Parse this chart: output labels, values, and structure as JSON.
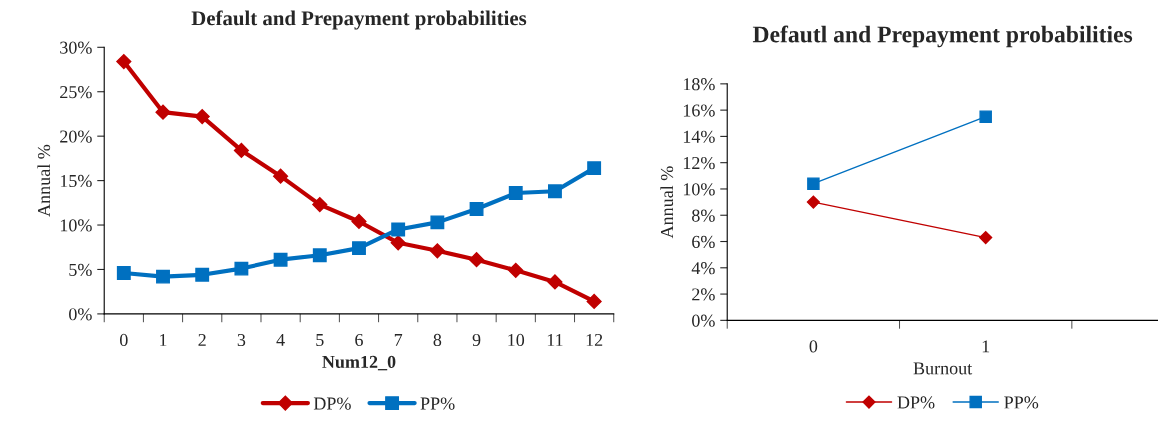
{
  "chart_data": [
    {
      "type": "line",
      "title": "Default and Prepayment probabilities",
      "xlabel": "Num12_0",
      "ylabel": "Annual %",
      "categories": [
        "0",
        "1",
        "2",
        "3",
        "4",
        "5",
        "6",
        "7",
        "8",
        "9",
        "10",
        "11",
        "12"
      ],
      "series": [
        {
          "name": "DP%",
          "color": "#c00000",
          "marker": "diamond",
          "values": [
            28.4,
            22.7,
            22.2,
            18.4,
            15.5,
            12.3,
            10.4,
            8.0,
            7.1,
            6.1,
            4.9,
            3.6,
            1.4
          ]
        },
        {
          "name": "PP%",
          "color": "#0070c0",
          "marker": "square",
          "values": [
            4.6,
            4.2,
            4.4,
            5.1,
            6.1,
            6.6,
            7.4,
            9.5,
            10.3,
            11.8,
            13.6,
            13.8,
            16.4
          ]
        }
      ],
      "ylim": [
        0,
        30
      ],
      "yticks": [
        {
          "value": 0,
          "label": "0%"
        },
        {
          "value": 5,
          "label": "5%"
        },
        {
          "value": 10,
          "label": "10%"
        },
        {
          "value": 15,
          "label": "15%"
        },
        {
          "value": 20,
          "label": "20%"
        },
        {
          "value": 25,
          "label": "25%"
        },
        {
          "value": 30,
          "label": "30%"
        }
      ],
      "grid": false,
      "legend": "bottom",
      "line_style": "solid"
    },
    {
      "type": "line",
      "title": "Defautl and Prepayment probabilities",
      "xlabel": "Burnout",
      "ylabel": "Annual %",
      "categories": [
        "0",
        "1"
      ],
      "series": [
        {
          "name": "DP%",
          "color": "#c00000",
          "marker": "diamond",
          "values": [
            9.0,
            6.3
          ]
        },
        {
          "name": "PP%",
          "color": "#0070c0",
          "marker": "square",
          "values": [
            10.4,
            15.5
          ]
        }
      ],
      "ylim": [
        0,
        18
      ],
      "yticks": [
        {
          "value": 0,
          "label": "0%"
        },
        {
          "value": 2,
          "label": "2%"
        },
        {
          "value": 4,
          "label": "4%"
        },
        {
          "value": 6,
          "label": "6%"
        },
        {
          "value": 8,
          "label": "8%"
        },
        {
          "value": 10,
          "label": "10%"
        },
        {
          "value": 12,
          "label": "12%"
        },
        {
          "value": 14,
          "label": "14%"
        },
        {
          "value": 16,
          "label": "16%"
        },
        {
          "value": 18,
          "label": "18%"
        }
      ],
      "grid": false,
      "legend": "bottom",
      "line_style": "solid"
    }
  ]
}
